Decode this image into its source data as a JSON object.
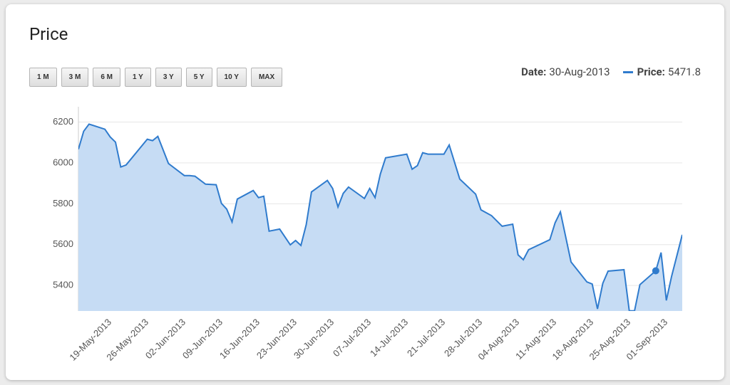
{
  "chart_data": {
    "type": "area",
    "title": "Price",
    "buttons": [
      "1 M",
      "3 M",
      "6 M",
      "1 Y",
      "3 Y",
      "5 Y",
      "10 Y",
      "MAX"
    ],
    "hover": {
      "date_label": "Date:",
      "date": "30-Aug-2013",
      "value_label": "Price:",
      "value": 5471.8
    },
    "x": [
      "13-May-2013",
      "14-May-2013",
      "15-May-2013",
      "18-May-2013",
      "19-May-2013",
      "20-May-2013",
      "21-May-2013",
      "22-May-2013",
      "26-May-2013",
      "27-May-2013",
      "28-May-2013",
      "30-May-2013",
      "02-Jun-2013",
      "03-Jun-2013",
      "04-Jun-2013",
      "06-Jun-2013",
      "08-Jun-2013",
      "09-Jun-2013",
      "10-Jun-2013",
      "11-Jun-2013",
      "12-Jun-2013",
      "15-Jun-2013",
      "16-Jun-2013",
      "17-Jun-2013",
      "18-Jun-2013",
      "20-Jun-2013",
      "22-Jun-2013",
      "23-Jun-2013",
      "24-Jun-2013",
      "25-Jun-2013",
      "26-Jun-2013",
      "29-Jun-2013",
      "30-Jun-2013",
      "01-Jul-2013",
      "02-Jul-2013",
      "03-Jul-2013",
      "06-Jul-2013",
      "07-Jul-2013",
      "08-Jul-2013",
      "09-Jul-2013",
      "10-Jul-2013",
      "14-Jul-2013",
      "15-Jul-2013",
      "16-Jul-2013",
      "17-Jul-2013",
      "18-Jul-2013",
      "21-Jul-2013",
      "22-Jul-2013",
      "24-Jul-2013",
      "27-Jul-2013",
      "28-Jul-2013",
      "30-Jul-2013",
      "01-Aug-2013",
      "03-Aug-2013",
      "04-Aug-2013",
      "05-Aug-2013",
      "06-Aug-2013",
      "10-Aug-2013",
      "11-Aug-2013",
      "12-Aug-2013",
      "14-Aug-2013",
      "17-Aug-2013",
      "18-Aug-2013",
      "19-Aug-2013",
      "20-Aug-2013",
      "21-Aug-2013",
      "24-Aug-2013",
      "25-Aug-2013",
      "26-Aug-2013",
      "27-Aug-2013",
      "30-Aug-2013",
      "31-Aug-2013",
      "01-Sep-2013",
      "02-Sep-2013",
      "04-Sep-2013"
    ],
    "series": [
      {
        "color": "#2f7bcd",
        "fill": "#c6dcf4",
        "values": [
          6067,
          6155,
          6190,
          6165,
          6127,
          6102,
          5980,
          5990,
          6116,
          6109,
          6130,
          5997,
          5938,
          5938,
          5935,
          5896,
          5893,
          5802,
          5774,
          5711,
          5823,
          5865,
          5830,
          5837,
          5666,
          5676,
          5599,
          5620,
          5596,
          5697,
          5858,
          5914,
          5875,
          5784,
          5851,
          5882,
          5826,
          5875,
          5830,
          5945,
          6025,
          6043,
          5969,
          5987,
          6050,
          6043,
          6043,
          6088,
          5921,
          5847,
          5770,
          5742,
          5690,
          5700,
          5550,
          5526,
          5575,
          5624,
          5707,
          5760,
          5515,
          5417,
          5407,
          5285,
          5411,
          5470,
          5477,
          5276,
          5276,
          5404,
          5471.8,
          5561,
          5327,
          5445,
          5648
        ]
      }
    ],
    "xlim": [
      "13-May-2013",
      "04-Sep-2013"
    ],
    "xticks": [
      "19-May-2013",
      "26-May-2013",
      "02-Jun-2013",
      "09-Jun-2013",
      "16-Jun-2013",
      "23-Jun-2013",
      "30-Jun-2013",
      "07-Jul-2013",
      "14-Jul-2013",
      "21-Jul-2013",
      "28-Jul-2013",
      "04-Aug-2013",
      "11-Aug-2013",
      "18-Aug-2013",
      "25-Aug-2013",
      "01-Sep-2013"
    ],
    "ylim": [
      5275,
      6275
    ],
    "yticks": [
      5400,
      5600,
      5800,
      6000,
      6200
    ],
    "grid": true
  }
}
